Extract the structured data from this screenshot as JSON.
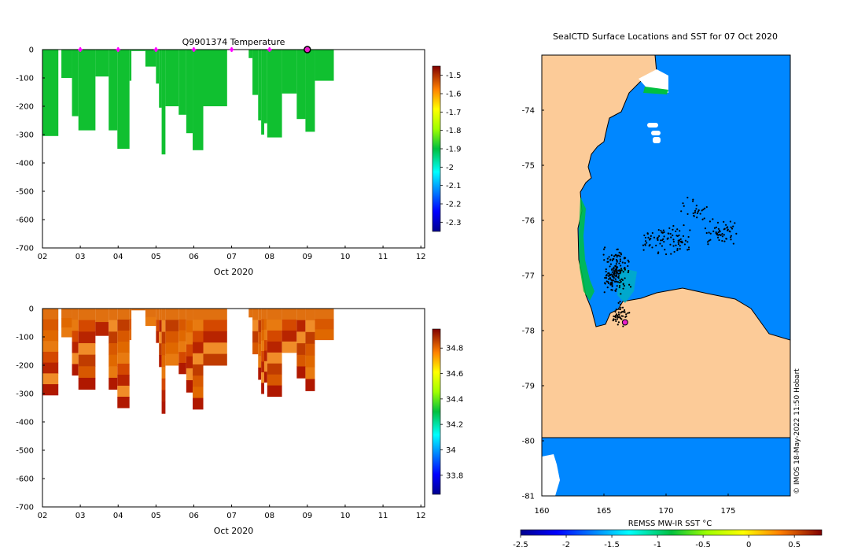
{
  "chart_data": [
    {
      "type": "heatmap",
      "title": "Q9901374  Temperature",
      "xlabel": "Oct 2020",
      "ylabel": "",
      "x_tick_labels": [
        "02",
        "03",
        "04",
        "05",
        "06",
        "07",
        "08",
        "09",
        "10",
        "11",
        "12"
      ],
      "y_tick_labels": [
        "0",
        "-100",
        "-200",
        "-300",
        "-400",
        "-500",
        "-600",
        "-700"
      ],
      "xlim": [
        2,
        12.1
      ],
      "ylim": [
        -700,
        0
      ],
      "colorbar_ticks": [
        "-1.5",
        "-1.6",
        "-1.7",
        "-1.8",
        "-1.9",
        "-2",
        "-2.1",
        "-2.2",
        "-2.3"
      ],
      "colorbar_range": [
        -2.35,
        -1.45
      ],
      "profile_marker_days": [
        3,
        4,
        5,
        6,
        7,
        8
      ],
      "current_profile_day": 9,
      "profiles": [
        {
          "x0": 2.0,
          "x1": 2.42,
          "depth": 305
        },
        {
          "x0": 2.5,
          "x1": 2.78,
          "depth": 100
        },
        {
          "x0": 2.78,
          "x1": 2.95,
          "depth": 235
        },
        {
          "x0": 2.95,
          "x1": 3.4,
          "depth": 285
        },
        {
          "x0": 3.4,
          "x1": 3.75,
          "depth": 95
        },
        {
          "x0": 3.75,
          "x1": 3.98,
          "depth": 285
        },
        {
          "x0": 3.98,
          "x1": 4.3,
          "depth": 350
        },
        {
          "x0": 4.3,
          "x1": 4.35,
          "depth": 110
        },
        {
          "x0": 4.35,
          "x1": 4.72,
          "depth": 5
        },
        {
          "x0": 4.72,
          "x1": 5.0,
          "depth": 60
        },
        {
          "x0": 5.0,
          "x1": 5.08,
          "depth": 120
        },
        {
          "x0": 5.08,
          "x1": 5.15,
          "depth": 205
        },
        {
          "x0": 5.15,
          "x1": 5.25,
          "depth": 370
        },
        {
          "x0": 5.25,
          "x1": 5.6,
          "depth": 200
        },
        {
          "x0": 5.6,
          "x1": 5.8,
          "depth": 230
        },
        {
          "x0": 5.8,
          "x1": 5.97,
          "depth": 295
        },
        {
          "x0": 5.97,
          "x1": 6.25,
          "depth": 355
        },
        {
          "x0": 6.25,
          "x1": 6.88,
          "depth": 200
        },
        {
          "x0": 7.45,
          "x1": 7.55,
          "depth": 30
        },
        {
          "x0": 7.55,
          "x1": 7.7,
          "depth": 160
        },
        {
          "x0": 7.7,
          "x1": 7.78,
          "depth": 250
        },
        {
          "x0": 7.78,
          "x1": 7.86,
          "depth": 300
        },
        {
          "x0": 7.86,
          "x1": 7.94,
          "depth": 260
        },
        {
          "x0": 7.94,
          "x1": 8.33,
          "depth": 310
        },
        {
          "x0": 8.33,
          "x1": 8.72,
          "depth": 155
        },
        {
          "x0": 8.72,
          "x1": 8.95,
          "depth": 245
        },
        {
          "x0": 8.95,
          "x1": 9.2,
          "depth": 290
        },
        {
          "x0": 9.2,
          "x1": 9.2,
          "depth": 0
        },
        {
          "x0": 9.2,
          "x1": 9.7,
          "depth": 110
        }
      ]
    },
    {
      "type": "heatmap",
      "title": "",
      "xlabel": "Oct 2020",
      "ylabel": "",
      "x_tick_labels": [
        "02",
        "03",
        "04",
        "05",
        "06",
        "07",
        "08",
        "09",
        "10",
        "11",
        "12"
      ],
      "y_tick_labels": [
        "0",
        "-100",
        "-200",
        "-300",
        "-400",
        "-500",
        "-600",
        "-700"
      ],
      "xlim": [
        2,
        12.1
      ],
      "ylim": [
        -700,
        0
      ],
      "colorbar_ticks": [
        "34.8",
        "34.6",
        "34.4",
        "34.2",
        "34",
        "33.8"
      ],
      "colorbar_range": [
        33.65,
        34.95
      ]
    },
    {
      "type": "heatmap",
      "title": "SealCTD Surface Locations and SST for 07 Oct 2020",
      "xlabel": "",
      "ylabel": "",
      "x_tick_labels": [
        "160",
        "165",
        "170",
        "175"
      ],
      "y_tick_labels": [
        "-74",
        "-75",
        "-76",
        "-77",
        "-78",
        "-79",
        "-80",
        "-81"
      ],
      "xlim": [
        160,
        180
      ],
      "ylim": [
        -81,
        -73
      ],
      "colorbar_label": "REMSS MW-IR SST °C",
      "colorbar_ticks": [
        "-2.5",
        "-2",
        "-1.5",
        "-1",
        "-0.5",
        "0",
        "0.5"
      ],
      "colorbar_range": [
        -2.5,
        0.8
      ],
      "credit": "© IMOS 18-May-2022 11:50 Hobart",
      "current_position": {
        "lon": 166.7,
        "lat": -77.85
      }
    }
  ]
}
